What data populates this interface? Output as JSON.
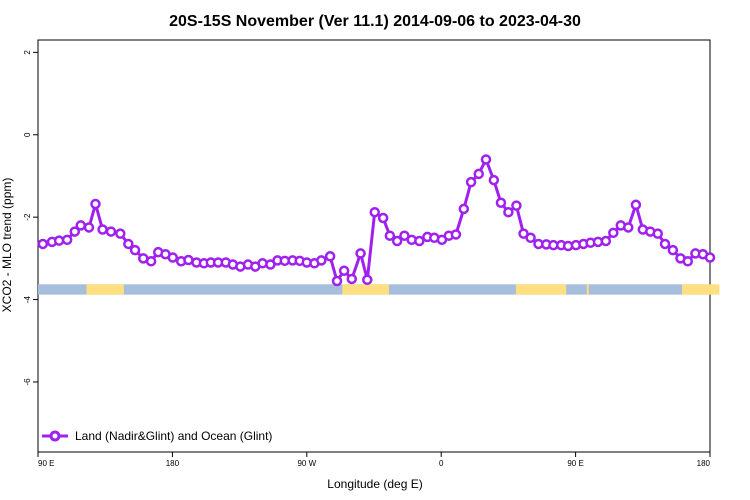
{
  "chart_data": {
    "type": "line",
    "title": "20S-15S November (Ver 11.1)   2014-09-06 to 2023-04-30",
    "xlabel": "Longitude (deg E)",
    "ylabel": "XCO2 - MLO trend (ppm)",
    "xlim": [
      90,
      450
    ],
    "ylim": [
      -7.7,
      2.3
    ],
    "x_ticks": [
      90,
      162,
      234,
      306,
      378,
      450
    ],
    "x_tick_labels": [
      "90 E",
      "180",
      "90 W",
      "0",
      "90 E",
      "180"
    ],
    "y_ticks": [
      2,
      0,
      -2,
      -4,
      -6
    ],
    "y_tick_labels": [
      "2",
      "0",
      "-2",
      "-4",
      "-6"
    ],
    "legend": {
      "position": "bottom-left",
      "label": "Land (Nadir&Glint) and Ocean (Glint)"
    },
    "series": [
      {
        "name": "Land (Nadir&Glint) and Ocean (Glint)",
        "color": "#a020f0",
        "x": [
          92.6,
          97.5,
          101.3,
          105.6,
          109.7,
          112.9,
          117.3,
          120.8,
          124.6,
          129.1,
          134.1,
          138.4,
          142.0,
          146.4,
          150.6,
          154.4,
          158.3,
          162.2,
          166.7,
          170.6,
          174.9,
          178.9,
          182.6,
          186.5,
          190.6,
          194.4,
          198.4,
          202.5,
          206.4,
          210.3,
          214.5,
          218.3,
          222.2,
          226.4,
          230.2,
          234.0,
          238.1,
          241.8,
          246.5,
          250.2,
          254.0,
          258.1,
          262.8,
          266.4,
          270.4,
          274.9,
          278.5,
          282.4,
          286.3,
          290.2,
          294.3,
          298.6,
          302.3,
          306.4,
          310.1,
          313.9,
          318.1,
          322.0,
          326.1,
          330.0,
          334.2,
          338.0,
          342.0,
          346.3,
          350.1,
          353.9,
          358.1,
          362.3,
          366.1,
          370.3,
          374.0,
          378.2,
          382.2,
          386.0,
          390.0,
          394.2,
          398.2,
          402.2,
          406.2,
          410.3,
          414.0,
          418.0,
          422.0,
          425.9,
          430.1,
          434.2,
          438.1,
          442.2,
          446.2,
          450.0
        ],
        "values": [
          -2.65,
          -2.6,
          -2.57,
          -2.55,
          -2.35,
          -2.2,
          -2.25,
          -1.68,
          -2.3,
          -2.35,
          -2.4,
          -2.65,
          -2.8,
          -3.0,
          -3.07,
          -2.85,
          -2.9,
          -2.98,
          -3.07,
          -3.04,
          -3.1,
          -3.12,
          -3.1,
          -3.1,
          -3.1,
          -3.15,
          -3.2,
          -3.15,
          -3.2,
          -3.12,
          -3.15,
          -3.05,
          -3.06,
          -3.05,
          -3.06,
          -3.1,
          -3.12,
          -3.05,
          -2.95,
          -3.55,
          -3.3,
          -3.5,
          -2.88,
          -3.52,
          -1.88,
          -2.02,
          -2.45,
          -2.58,
          -2.45,
          -2.55,
          -2.58,
          -2.48,
          -2.5,
          -2.55,
          -2.45,
          -2.42,
          -1.8,
          -1.15,
          -0.95,
          -0.6,
          -1.1,
          -1.65,
          -1.88,
          -1.72,
          -2.4,
          -2.5,
          -2.65,
          -2.66,
          -2.68,
          -2.68,
          -2.7,
          -2.68,
          -2.65,
          -2.62,
          -2.6,
          -2.58,
          -2.38,
          -2.2,
          -2.25,
          -1.7,
          -2.3,
          -2.35,
          -2.4,
          -2.65,
          -2.8,
          -3.0,
          -3.07,
          -2.88,
          -2.9,
          -2.98
        ]
      }
    ],
    "surface_strip": {
      "y_range": [
        -3.63,
        -3.88
      ],
      "ocean_color": "#a6bddb",
      "land_color": "#ffdf80",
      "land_segments": [
        [
          116,
          136
        ],
        [
          253,
          278
        ],
        [
          346,
          373
        ],
        [
          384,
          385
        ],
        [
          435,
          455
        ]
      ]
    }
  }
}
